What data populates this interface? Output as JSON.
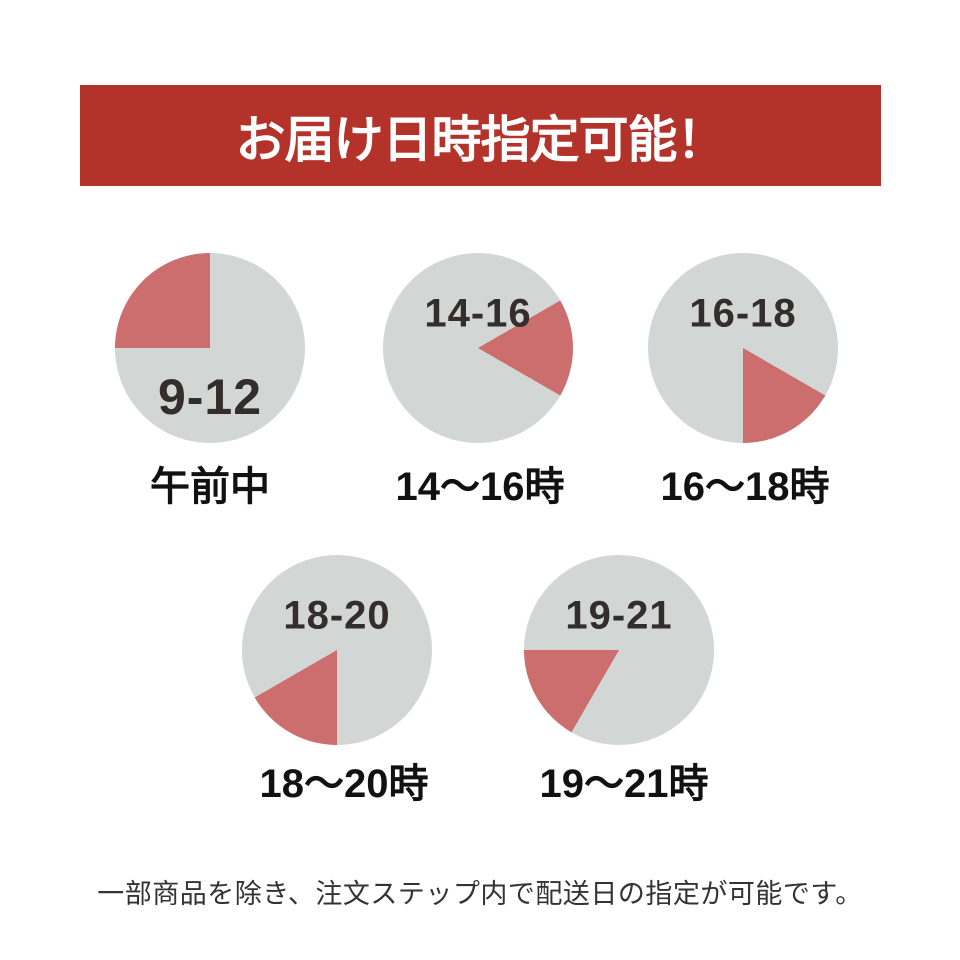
{
  "banner": {
    "label": "お届け日時指定可能！"
  },
  "colors": {
    "banner_bg": "#b33229",
    "banner_text": "#ffffff",
    "pie_base": "#d2d6d5",
    "pie_slice": "#cc6e6e",
    "number_text": "#332d2b",
    "label_text": "#111111",
    "footnote_text": "#333333"
  },
  "clocks": [
    {
      "number": "9-12",
      "label": "午前中",
      "slice_start_deg": 270,
      "slice_end_deg": 360
    },
    {
      "number": "14-16",
      "label": "14〜16時",
      "slice_start_deg": 60,
      "slice_end_deg": 120
    },
    {
      "number": "16-18",
      "label": "16〜18時",
      "slice_start_deg": 120,
      "slice_end_deg": 180
    },
    {
      "number": "18-20",
      "label": "18〜20時",
      "slice_start_deg": 180,
      "slice_end_deg": 240
    },
    {
      "number": "19-21",
      "label": "19〜21時",
      "slice_start_deg": 210,
      "slice_end_deg": 270
    }
  ],
  "footnote": {
    "text": "一部商品を除き、注文ステップ内で配送日の指定が可能です。"
  }
}
